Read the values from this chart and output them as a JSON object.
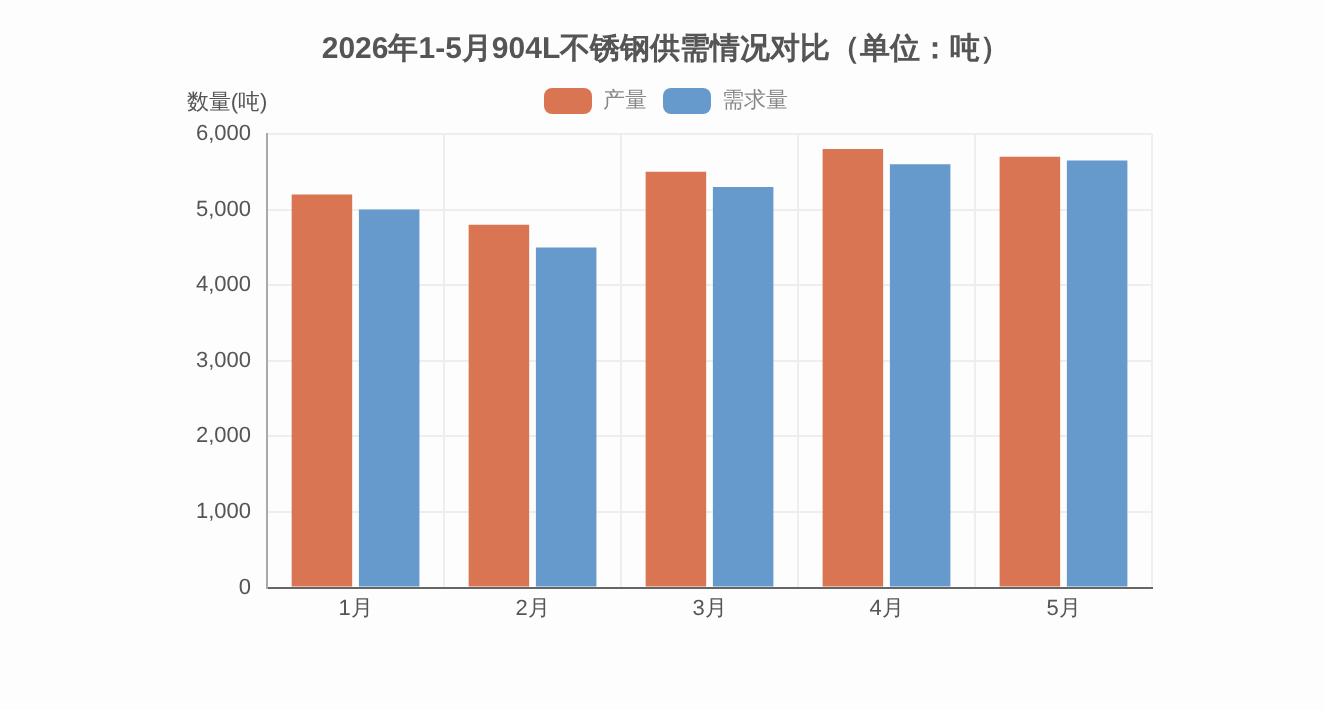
{
  "chart_data": {
    "type": "bar",
    "title": "2026年1-5月904L不锈钢供需情况对比（单位：吨）",
    "ylabel": "数量(吨)",
    "categories": [
      "1月",
      "2月",
      "3月",
      "4月",
      "5月"
    ],
    "series": [
      {
        "name": "产量",
        "color": "#d97552",
        "values": [
          5200,
          4800,
          5500,
          5800,
          5700
        ]
      },
      {
        "name": "需求量",
        "color": "#6699cc",
        "values": [
          5000,
          4500,
          5300,
          5600,
          5650
        ]
      }
    ],
    "ylim": [
      0,
      6000
    ],
    "yticks": [
      0,
      {
        "value": 1000,
        "label": "1,000"
      },
      {
        "value": 2000,
        "label": "2,000"
      },
      {
        "value": 3000,
        "label": "3,000"
      },
      {
        "value": 4000,
        "label": "4,000"
      },
      {
        "value": 5000,
        "label": "5,000"
      },
      {
        "value": 6000,
        "label": "6,000"
      }
    ],
    "grid": true,
    "legend": "top"
  }
}
